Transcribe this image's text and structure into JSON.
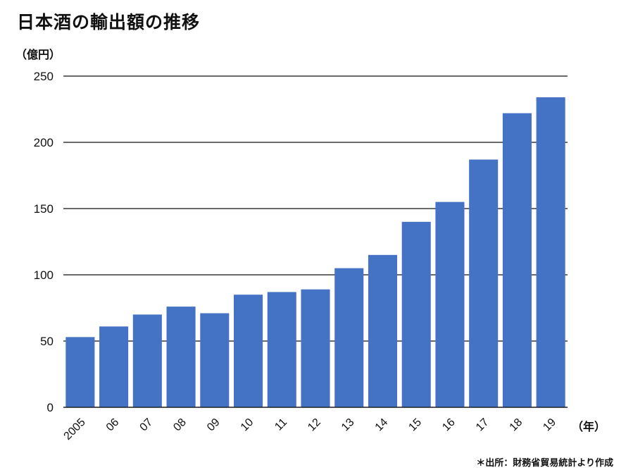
{
  "title": "日本酒の輸出額の推移",
  "source_note": "＊出所：財務省貿易統計より作成",
  "chart_data": {
    "type": "bar",
    "title": "日本酒の輸出額の推移",
    "ylabel": "（億円）",
    "xlabel": "（年）",
    "ylim": [
      0,
      250
    ],
    "yticks": [
      0,
      50,
      100,
      150,
      200,
      250
    ],
    "grid": true,
    "categories": [
      "2005",
      "06",
      "07",
      "08",
      "09",
      "10",
      "11",
      "12",
      "13",
      "14",
      "15",
      "16",
      "17",
      "18",
      "19"
    ],
    "series": [
      {
        "values": [
          53,
          61,
          70,
          76,
          71,
          85,
          87,
          89,
          105,
          115,
          140,
          155,
          187,
          222,
          234
        ]
      }
    ],
    "colors": {
      "bar": "#4472c4",
      "grid": "#111111"
    }
  }
}
